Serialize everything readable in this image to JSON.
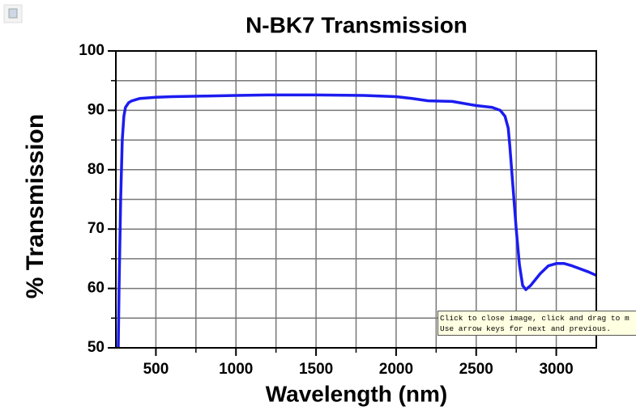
{
  "chart_data": {
    "type": "line",
    "title": "N-BK7 Transmission",
    "x_label": "Wavelength (nm)",
    "y_label": "% Transmission",
    "x": [
      265,
      270,
      280,
      290,
      300,
      310,
      330,
      350,
      400,
      500,
      600,
      800,
      1000,
      1200,
      1500,
      1800,
      2000,
      2100,
      2200,
      2350,
      2500,
      2600,
      2650,
      2680,
      2700,
      2710,
      2730,
      2750,
      2770,
      2790,
      2810,
      2840,
      2900,
      2950,
      3000,
      3050,
      3100,
      3200,
      3250
    ],
    "series": [
      {
        "name": "N-BK7",
        "color": "#1c1cf0",
        "values": [
          50,
          60,
          75,
          85,
          89,
          90.5,
          91.3,
          91.6,
          92,
          92.2,
          92.3,
          92.4,
          92.5,
          92.6,
          92.6,
          92.5,
          92.3,
          92,
          91.6,
          91.5,
          90.8,
          90.5,
          90,
          89,
          87,
          84,
          77,
          70,
          64,
          60.5,
          59.8,
          60.5,
          62.5,
          63.8,
          64.2,
          64.2,
          63.8,
          62.8,
          62.2
        ]
      }
    ],
    "xlim": [
      250,
      3250
    ],
    "xticks": [
      500,
      1000,
      1500,
      2000,
      2500,
      3000
    ],
    "ylim": [
      50,
      100
    ],
    "yticks": [
      50,
      60,
      70,
      80,
      90,
      100
    ],
    "grid": true
  },
  "tooltip": {
    "lines": [
      "Click to close image, click and drag to m",
      "Use arrow keys for next and previous."
    ]
  }
}
